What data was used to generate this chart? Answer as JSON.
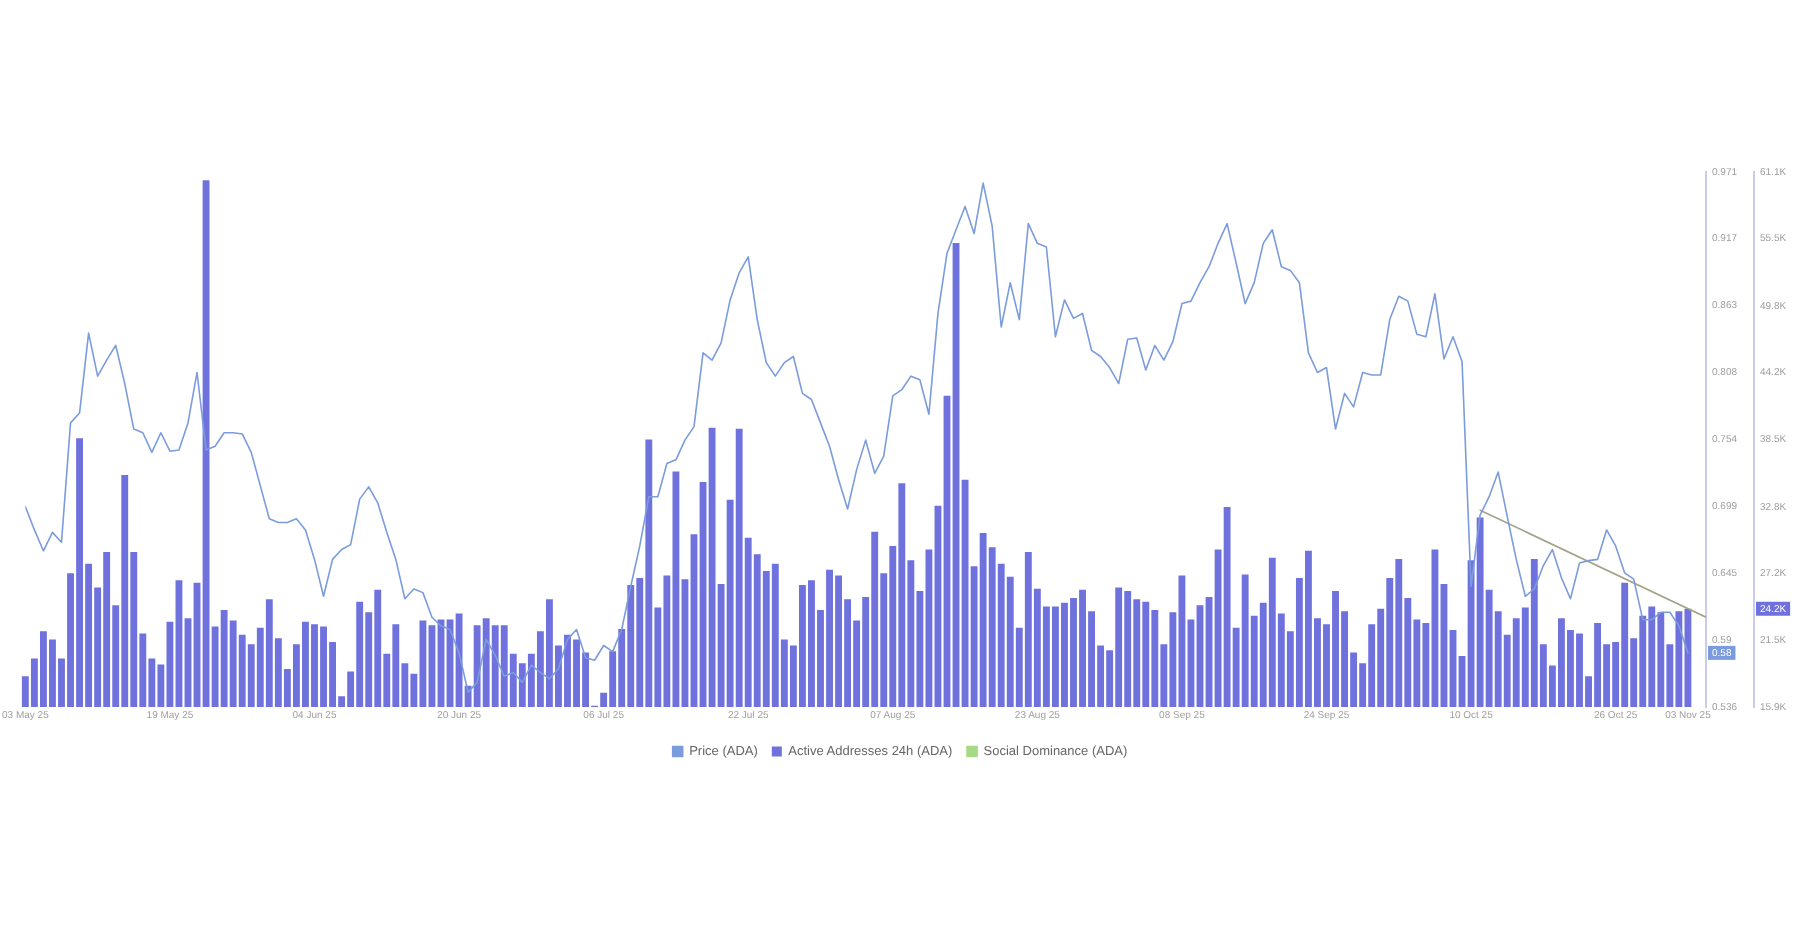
{
  "chart_data": {
    "type": "bar",
    "x": [
      "2025-05-03",
      "2025-05-04",
      "2025-05-05",
      "2025-05-06",
      "2025-05-07",
      "2025-05-08",
      "2025-05-09",
      "2025-05-10",
      "2025-05-11",
      "2025-05-12",
      "2025-05-13",
      "2025-05-14",
      "2025-05-15",
      "2025-05-16",
      "2025-05-17",
      "2025-05-18",
      "2025-05-19",
      "2025-05-20",
      "2025-05-21",
      "2025-05-22",
      "2025-05-23",
      "2025-05-24",
      "2025-05-25",
      "2025-05-26",
      "2025-05-27",
      "2025-05-28",
      "2025-05-29",
      "2025-05-30",
      "2025-05-31",
      "2025-06-01",
      "2025-06-02",
      "2025-06-03",
      "2025-06-04",
      "2025-06-05",
      "2025-06-06",
      "2025-06-07",
      "2025-06-08",
      "2025-06-09",
      "2025-06-10",
      "2025-06-11",
      "2025-06-12",
      "2025-06-13",
      "2025-06-14",
      "2025-06-15",
      "2025-06-16",
      "2025-06-17",
      "2025-06-18",
      "2025-06-19",
      "2025-06-20",
      "2025-06-21",
      "2025-06-22",
      "2025-06-23",
      "2025-06-24",
      "2025-06-25",
      "2025-06-26",
      "2025-06-27",
      "2025-06-28",
      "2025-06-29",
      "2025-06-30",
      "2025-07-01",
      "2025-07-02",
      "2025-07-03",
      "2025-07-04",
      "2025-07-05",
      "2025-07-06",
      "2025-07-07",
      "2025-07-08",
      "2025-07-09",
      "2025-07-10",
      "2025-07-11",
      "2025-07-12",
      "2025-07-13",
      "2025-07-14",
      "2025-07-15",
      "2025-07-16",
      "2025-07-17",
      "2025-07-18",
      "2025-07-19",
      "2025-07-20",
      "2025-07-21",
      "2025-07-22",
      "2025-07-23",
      "2025-07-24",
      "2025-07-25",
      "2025-07-26",
      "2025-07-27",
      "2025-07-28",
      "2025-07-29",
      "2025-07-30",
      "2025-07-31",
      "2025-08-01",
      "2025-08-02",
      "2025-08-03",
      "2025-08-04",
      "2025-08-05",
      "2025-08-06",
      "2025-08-07",
      "2025-08-08",
      "2025-08-09",
      "2025-08-10",
      "2025-08-11",
      "2025-08-12",
      "2025-08-13",
      "2025-08-14",
      "2025-08-15",
      "2025-08-16",
      "2025-08-17",
      "2025-08-18",
      "2025-08-19",
      "2025-08-20",
      "2025-08-21",
      "2025-08-22",
      "2025-08-23",
      "2025-08-24",
      "2025-08-25",
      "2025-08-26",
      "2025-08-27",
      "2025-08-28",
      "2025-08-29",
      "2025-08-30",
      "2025-08-31",
      "2025-09-01",
      "2025-09-02",
      "2025-09-03",
      "2025-09-04",
      "2025-09-05",
      "2025-09-06",
      "2025-09-07",
      "2025-09-08",
      "2025-09-09",
      "2025-09-10",
      "2025-09-11",
      "2025-09-12",
      "2025-09-13",
      "2025-09-14",
      "2025-09-15",
      "2025-09-16",
      "2025-09-17",
      "2025-09-18",
      "2025-09-19",
      "2025-09-20",
      "2025-09-21",
      "2025-09-22",
      "2025-09-23",
      "2025-09-24",
      "2025-09-25",
      "2025-09-26",
      "2025-09-27",
      "2025-09-28",
      "2025-09-29",
      "2025-09-30",
      "2025-10-01",
      "2025-10-02",
      "2025-10-03",
      "2025-10-04",
      "2025-10-05",
      "2025-10-06",
      "2025-10-07",
      "2025-10-08",
      "2025-10-09",
      "2025-10-10",
      "2025-10-11",
      "2025-10-12",
      "2025-10-13",
      "2025-10-14",
      "2025-10-15",
      "2025-10-16",
      "2025-10-17",
      "2025-10-18",
      "2025-10-19",
      "2025-10-20",
      "2025-10-21",
      "2025-10-22",
      "2025-10-23",
      "2025-10-24",
      "2025-10-25",
      "2025-10-26",
      "2025-10-27",
      "2025-10-28",
      "2025-10-29",
      "2025-10-30",
      "2025-10-31",
      "2025-11-01",
      "2025-11-02",
      "2025-11-03"
    ],
    "xlim": [
      "2025-05-03",
      "2025-11-05"
    ],
    "xticks": [
      {
        "value": "2025-05-03",
        "label": "03 May 25"
      },
      {
        "value": "2025-05-19",
        "label": "19 May 25"
      },
      {
        "value": "2025-06-04",
        "label": "04 Jun 25"
      },
      {
        "value": "2025-06-20",
        "label": "20 Jun 25"
      },
      {
        "value": "2025-07-06",
        "label": "06 Jul 25"
      },
      {
        "value": "2025-07-22",
        "label": "22 Jul 25"
      },
      {
        "value": "2025-08-07",
        "label": "07 Aug 25"
      },
      {
        "value": "2025-08-23",
        "label": "23 Aug 25"
      },
      {
        "value": "2025-09-08",
        "label": "08 Sep 25"
      },
      {
        "value": "2025-09-24",
        "label": "24 Sep 25"
      },
      {
        "value": "2025-10-10",
        "label": "10 Oct 25"
      },
      {
        "value": "2025-10-26",
        "label": "26 Oct 25"
      },
      {
        "value": "2025-11-03",
        "label": "03 Nov 25"
      }
    ],
    "ylim": [
      0.536,
      0.971
    ],
    "yticks": [
      0.536,
      0.58,
      0.59,
      0.645,
      0.699,
      0.754,
      0.808,
      0.863,
      0.917,
      0.971
    ],
    "y2lim": [
      15900,
      61100
    ],
    "y2ticks": [
      {
        "value": 15900,
        "label": "15.9K"
      },
      {
        "value": 21500,
        "label": "21.5K"
      },
      {
        "value": 24200,
        "label": "24.2K"
      },
      {
        "value": 27200,
        "label": "27.2K"
      },
      {
        "value": 32800,
        "label": "32.8K"
      },
      {
        "value": 38500,
        "label": "38.5K"
      },
      {
        "value": 44200,
        "label": "44.2K"
      },
      {
        "value": 49800,
        "label": "49.8K"
      },
      {
        "value": 55500,
        "label": "55.5K"
      },
      {
        "value": 61100,
        "label": "61.1K"
      }
    ],
    "grid": false,
    "legend": "bottom",
    "marker": "none",
    "series": [
      {
        "name": "Price (ADA)",
        "type": "line",
        "color": "#7b9cdc",
        "values": [
          0.699,
          0.68,
          0.663,
          0.678,
          0.67,
          0.767,
          0.775,
          0.84,
          0.805,
          0.818,
          0.83,
          0.799,
          0.762,
          0.759,
          0.743,
          0.759,
          0.744,
          0.745,
          0.767,
          0.808,
          0.745,
          0.748,
          0.759,
          0.759,
          0.758,
          0.743,
          0.716,
          0.689,
          0.686,
          0.686,
          0.689,
          0.68,
          0.656,
          0.626,
          0.656,
          0.664,
          0.668,
          0.705,
          0.715,
          0.702,
          0.678,
          0.656,
          0.624,
          0.632,
          0.629,
          0.609,
          0.602,
          0.599,
          0.58,
          0.548,
          0.556,
          0.591,
          0.578,
          0.561,
          0.564,
          0.556,
          0.57,
          0.564,
          0.559,
          0.567,
          0.591,
          0.599,
          0.576,
          0.574,
          0.586,
          0.581,
          0.599,
          0.634,
          0.667,
          0.707,
          0.707,
          0.734,
          0.737,
          0.753,
          0.764,
          0.824,
          0.818,
          0.832,
          0.867,
          0.889,
          0.902,
          0.851,
          0.816,
          0.805,
          0.816,
          0.821,
          0.791,
          0.786,
          0.767,
          0.748,
          0.721,
          0.697,
          0.729,
          0.753,
          0.726,
          0.74,
          0.789,
          0.794,
          0.805,
          0.802,
          0.774,
          0.856,
          0.905,
          0.924,
          0.943,
          0.921,
          0.962,
          0.927,
          0.845,
          0.881,
          0.851,
          0.929,
          0.913,
          0.91,
          0.837,
          0.867,
          0.852,
          0.856,
          0.826,
          0.821,
          0.812,
          0.799,
          0.835,
          0.836,
          0.81,
          0.83,
          0.818,
          0.833,
          0.864,
          0.866,
          0.881,
          0.894,
          0.913,
          0.929,
          0.897,
          0.864,
          0.881,
          0.913,
          0.924,
          0.894,
          0.891,
          0.881,
          0.824,
          0.808,
          0.812,
          0.762,
          0.791,
          0.78,
          0.808,
          0.806,
          0.806,
          0.851,
          0.87,
          0.866,
          0.839,
          0.837,
          0.872,
          0.819,
          0.837,
          0.817,
          0.634,
          0.692,
          0.707,
          0.727,
          0.691,
          0.656,
          0.626,
          0.632,
          0.651,
          0.664,
          0.641,
          0.624,
          0.653,
          0.655,
          0.656,
          0.68,
          0.667,
          0.645,
          0.64,
          0.607,
          0.607,
          0.613,
          0.613,
          0.602,
          0.58
        ]
      },
      {
        "name": "Active Addresses 24h (ADA)",
        "axis": "y2",
        "color": "#6f71dd",
        "values": [
          18500,
          20000,
          22300,
          21600,
          20000,
          27200,
          38600,
          28000,
          26000,
          29000,
          24500,
          35500,
          29000,
          22100,
          20000,
          19500,
          23100,
          26600,
          23400,
          26400,
          60400,
          22700,
          24100,
          23200,
          22000,
          21200,
          22600,
          25000,
          21700,
          19100,
          21200,
          23100,
          22900,
          22700,
          21400,
          16800,
          18900,
          24800,
          23900,
          25800,
          20400,
          22900,
          19600,
          18700,
          23200,
          22800,
          23300,
          23300,
          23800,
          17700,
          22800,
          23400,
          22800,
          22800,
          20400,
          19600,
          20400,
          22300,
          25000,
          21100,
          22000,
          21600,
          20500,
          16000,
          17100,
          20600,
          22500,
          26200,
          26800,
          38500,
          24300,
          27000,
          35800,
          26700,
          30500,
          34900,
          39500,
          26300,
          33400,
          39400,
          30200,
          28800,
          27400,
          28000,
          21600,
          21100,
          26200,
          26600,
          24100,
          27500,
          27000,
          25000,
          23200,
          25200,
          30700,
          27200,
          29500,
          34800,
          28300,
          25700,
          29200,
          32900,
          42200,
          55100,
          35100,
          27800,
          30600,
          29400,
          28000,
          26900,
          22600,
          29000,
          25900,
          24400,
          24400,
          24700,
          25100,
          25800,
          24000,
          21100,
          20700,
          26000,
          25700,
          25000,
          24800,
          24100,
          21200,
          23900,
          27000,
          23300,
          24500,
          25200,
          29200,
          32800,
          22600,
          27100,
          23600,
          24700,
          28500,
          23800,
          22300,
          26800,
          29100,
          23400,
          22900,
          25700,
          24000,
          20500,
          19600,
          22900,
          24200,
          26800,
          28400,
          25100,
          23300,
          23000,
          29200,
          26300,
          22400,
          20200,
          28300,
          31900,
          25800,
          24000,
          22000,
          23400,
          24300,
          28400,
          21200,
          19400,
          23400,
          22400,
          22100,
          18500,
          23000,
          21200,
          21400,
          26400,
          21700,
          23600,
          24400,
          23900,
          21200,
          24000,
          24200
        ]
      },
      {
        "name": "Social Dominance (ADA)",
        "type": "line",
        "color": "#a6d986",
        "values": [
          null,
          null,
          null,
          null,
          null,
          null,
          null,
          null,
          null,
          null,
          null,
          null,
          null,
          null,
          null,
          null,
          null,
          null,
          null,
          null,
          null,
          null,
          null,
          null,
          null,
          null,
          null,
          null,
          null,
          null,
          null,
          null,
          null,
          null,
          null,
          null,
          null,
          null,
          null,
          null,
          null,
          null,
          null,
          null,
          null,
          null,
          null,
          null,
          null,
          null,
          null,
          null,
          null,
          null,
          null,
          null,
          null,
          null,
          null,
          null,
          null,
          null,
          null,
          null,
          null,
          null,
          null,
          null,
          null,
          null,
          null,
          null,
          null,
          null,
          null,
          null,
          null,
          null,
          null,
          null,
          null,
          null,
          null,
          null,
          null,
          null,
          null,
          null,
          null,
          null,
          null,
          null,
          null,
          null,
          null,
          null,
          null,
          null,
          null,
          null,
          null,
          null,
          null,
          null,
          null,
          null,
          null,
          null,
          null,
          null,
          null,
          null,
          null,
          null,
          null,
          null,
          null,
          null,
          null,
          null,
          null,
          null,
          null,
          null,
          null,
          null,
          null,
          null,
          null,
          null,
          null,
          null,
          null,
          null,
          null,
          null,
          null,
          null,
          null,
          null,
          null,
          null,
          null,
          null,
          null,
          null,
          null,
          null,
          null,
          null,
          null,
          null,
          null,
          null,
          null,
          null,
          null,
          null,
          null,
          null,
          null,
          null,
          null,
          null,
          null,
          null,
          null,
          null,
          null,
          null,
          null,
          null,
          null,
          null,
          null,
          null,
          null,
          null,
          null,
          null,
          null,
          null,
          null,
          null,
          null
        ]
      },
      {
        "type": "line",
        "color": "#a4a38a",
        "x": [
          "2025-10-11",
          "2025-11-05"
        ],
        "values": [
          0.696,
          0.609
        ]
      }
    ]
  }
}
